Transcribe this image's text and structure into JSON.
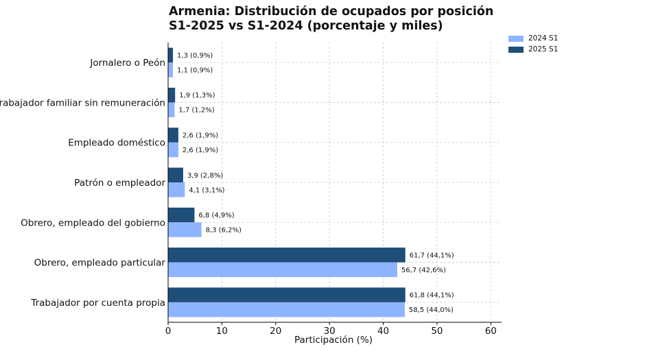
{
  "chart_data": {
    "type": "bar",
    "orientation": "horizontal",
    "title": "Armenia: Distribución de ocupados por posición\nS1-2025 vs S1-2024 (porcentaje y miles)",
    "xlabel": "Participación (%)",
    "ylabel": "",
    "xlim": [
      0,
      62
    ],
    "xticks": [
      0,
      10,
      20,
      30,
      40,
      50,
      60
    ],
    "grid": true,
    "legend_position": "top-right",
    "categories": [
      "Jornalero o Peón",
      "Trabajador familiar sin remuneración",
      "Empleado doméstico",
      "Patrón o empleador",
      "Obrero, empleado del gobierno",
      "Obrero, empleado particular",
      "Trabajador por cuenta propia"
    ],
    "series": [
      {
        "name": "2025 S1",
        "color": "#1f4e79",
        "values": [
          0.9,
          1.3,
          1.9,
          2.8,
          4.9,
          44.1,
          44.1
        ],
        "labels": [
          "1,3 (0,9%)",
          "1,9 (1,3%)",
          "2,6 (1,9%)",
          "3,9 (2,8%)",
          "6,8 (4,9%)",
          "61,7 (44,1%)",
          "61,8 (44,1%)"
        ]
      },
      {
        "name": "2024 S1",
        "color": "#8fb4ff",
        "values": [
          0.9,
          1.2,
          1.9,
          3.1,
          6.2,
          42.6,
          44.0
        ],
        "labels": [
          "1,1 (0,9%)",
          "1,7 (1,2%)",
          "2,6 (1,9%)",
          "4,1 (3,1%)",
          "8,3 (6,2%)",
          "56,7 (42,6%)",
          "58,5 (44,0%)"
        ]
      }
    ]
  },
  "legend": [
    {
      "label": "2024 S1",
      "color": "#8fb4ff"
    },
    {
      "label": "2025 S1",
      "color": "#1f4e79"
    }
  ]
}
